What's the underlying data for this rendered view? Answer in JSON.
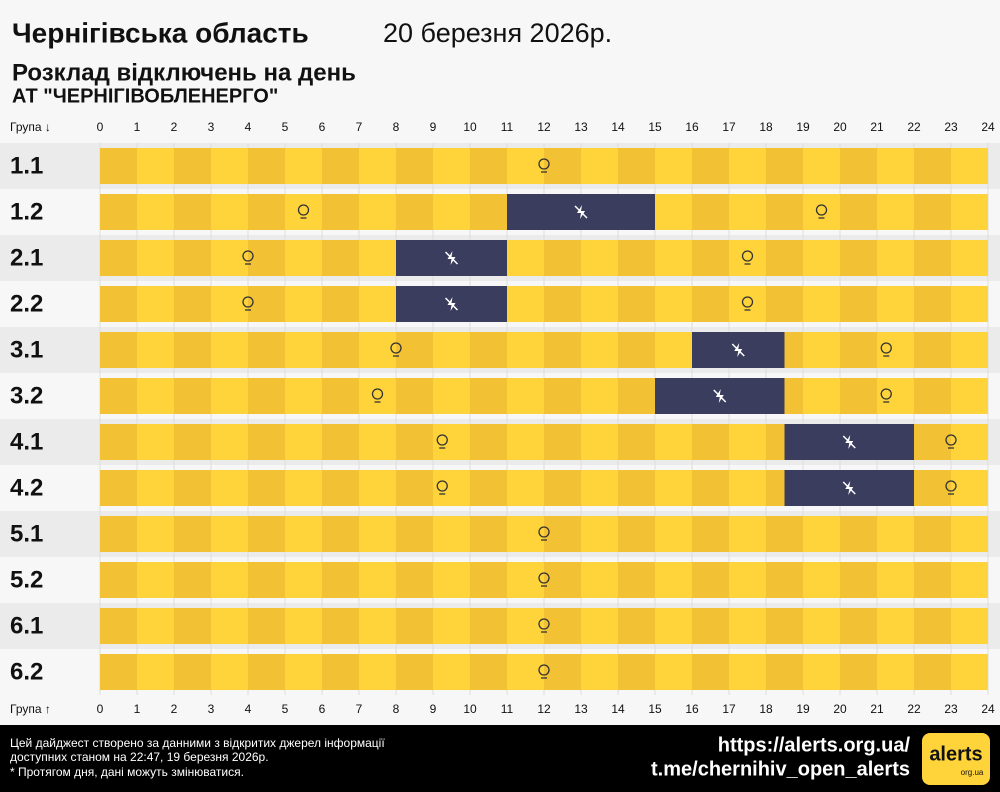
{
  "chart_data": {
    "type": "gantt",
    "title": "Чернігівська область",
    "date": "20 березня 2026р.",
    "subtitle": "Розклад відключень на день",
    "company": "АТ \"ЧЕРНІГІВОБЛЕНЕРГО\"",
    "axis_label_top": "Група ↓",
    "axis_label_bottom": "Група ↑",
    "xlim": [
      0,
      24
    ],
    "xticks": [
      0,
      1,
      2,
      3,
      4,
      5,
      6,
      7,
      8,
      9,
      10,
      11,
      12,
      13,
      14,
      15,
      16,
      17,
      18,
      19,
      20,
      21,
      22,
      23,
      24
    ],
    "on_color": "#ffd43b",
    "on_color_alt": "#f3c234",
    "off_color": "#3b3d5e",
    "series": [
      {
        "name": "1.1",
        "outages": []
      },
      {
        "name": "1.2",
        "outages": [
          [
            11,
            15
          ]
        ]
      },
      {
        "name": "2.1",
        "outages": [
          [
            8,
            11
          ]
        ]
      },
      {
        "name": "2.2",
        "outages": [
          [
            8,
            11
          ]
        ]
      },
      {
        "name": "3.1",
        "outages": [
          [
            16,
            18.5
          ]
        ]
      },
      {
        "name": "3.2",
        "outages": [
          [
            15,
            18.5
          ]
        ]
      },
      {
        "name": "4.1",
        "outages": [
          [
            18.5,
            22
          ]
        ]
      },
      {
        "name": "4.2",
        "outages": [
          [
            18.5,
            22
          ]
        ]
      },
      {
        "name": "5.1",
        "outages": []
      },
      {
        "name": "5.2",
        "outages": []
      },
      {
        "name": "6.1",
        "outages": []
      },
      {
        "name": "6.2",
        "outages": []
      }
    ],
    "footer": {
      "lines": [
        "Цей дайджест створено за данними з відкритих джерел інформації",
        "доступних станом на 22:47, 19 березня 2026р.",
        "* Протягом дня, дані можуть змінюватися."
      ],
      "site": "https://alerts.org.ua/",
      "telegram": "t.me/chernihiv_open_alerts",
      "logo": "alerts",
      "logo_sub": "org.ua"
    }
  }
}
